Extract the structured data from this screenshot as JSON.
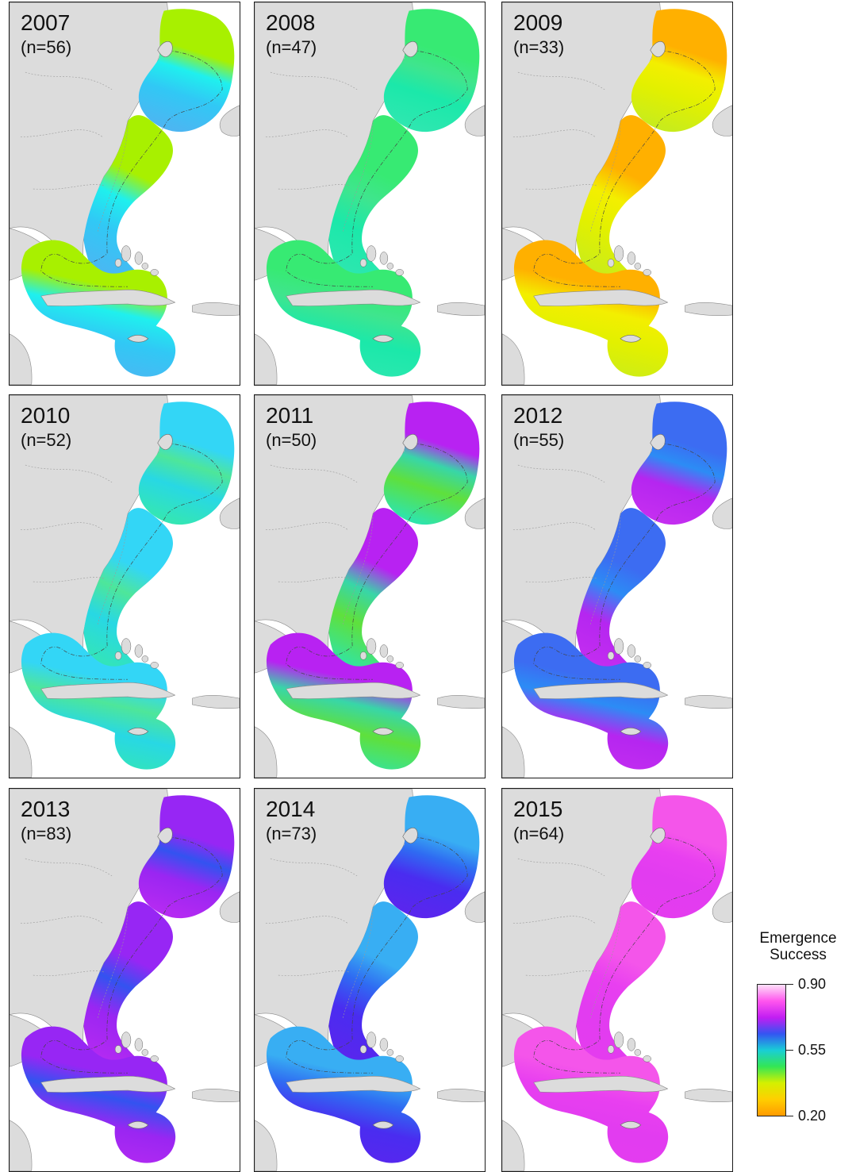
{
  "panels": [
    {
      "year": "2007",
      "count": "(n=56)",
      "colors": {
        "north": "#a8f000",
        "mid": "#1ff0ee",
        "south": "#31c8f5",
        "south2": "#4cb6f2"
      }
    },
    {
      "year": "2008",
      "count": "(n=47)",
      "colors": {
        "north": "#37ea73",
        "mid": "#3fe58e",
        "south": "#1be8aa",
        "south2": "#2ee7b0"
      }
    },
    {
      "year": "2009",
      "count": "(n=33)",
      "colors": {
        "north": "#ffb000",
        "mid": "#f3ef00",
        "south": "#e2f000",
        "south2": "#c8ec1c"
      }
    },
    {
      "year": "2010",
      "count": "(n=52)",
      "colors": {
        "north": "#33d6f6",
        "mid": "#4ee69a",
        "south": "#28d8e4",
        "south2": "#34e6b4"
      }
    },
    {
      "year": "2011",
      "count": "(n=50)",
      "colors": {
        "north": "#b822f2",
        "mid": "#38d6a8",
        "south": "#5fe03c",
        "south2": "#2fe4aa"
      }
    },
    {
      "year": "2012",
      "count": "(n=55)",
      "colors": {
        "north": "#3c6cf2",
        "mid": "#2c8cf5",
        "south": "#b526f0",
        "south2": "#c42ef0"
      }
    },
    {
      "year": "2013",
      "count": "(n=83)",
      "colors": {
        "north": "#9726f4",
        "mid": "#3353f0",
        "south": "#9a26f2",
        "south2": "#b52af2"
      }
    },
    {
      "year": "2014",
      "count": "(n=73)",
      "colors": {
        "north": "#38aef3",
        "mid": "#2f6bf2",
        "south": "#4a2cf0",
        "south2": "#5a26ee"
      }
    },
    {
      "year": "2015",
      "count": "(n=64)",
      "colors": {
        "north": "#f455ea",
        "mid": "#e83ff0",
        "south": "#e23cf0",
        "south2": "#e43cef"
      }
    }
  ],
  "legend": {
    "title_line1": "Emergence",
    "title_line2": "Success",
    "ticks": [
      {
        "label": "0.90",
        "value": 0.9
      },
      {
        "label": "0.55",
        "value": 0.55
      },
      {
        "label": "0.20",
        "value": 0.2
      }
    ],
    "gradient": [
      "#fde0f8",
      "#ff55ee",
      "#c21ef2",
      "#3355f2",
      "#19ced6",
      "#33e655",
      "#d4f000",
      "#ffcf00",
      "#ff9a00"
    ]
  }
}
